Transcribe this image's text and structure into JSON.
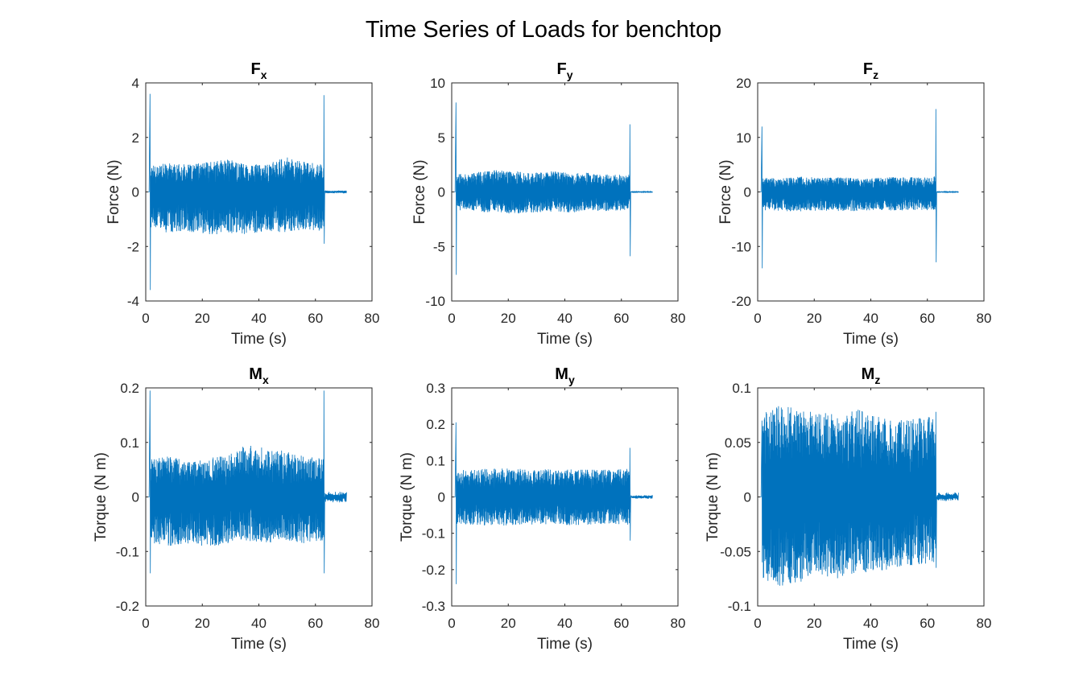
{
  "figure_title": "Time Series of Loads for benchtop",
  "line_color": "#0072BD",
  "chart_data": [
    {
      "type": "line",
      "title_main": "F",
      "title_sub": "x",
      "xlabel": "Time (s)",
      "ylabel": "Force (N)",
      "xlim": [
        0,
        80
      ],
      "ylim": [
        -4,
        4
      ],
      "xticks": [
        0,
        20,
        40,
        60,
        80
      ],
      "yticks": [
        -4,
        -2,
        0,
        2,
        4
      ],
      "xtick_labels": [
        "0",
        "20",
        "40",
        "60",
        "80"
      ],
      "ytick_labels": [
        "-4",
        "-2",
        "0",
        "2",
        "4"
      ],
      "series": [
        {
          "values": {
            "signal_start": 1.5,
            "signal_end": 63,
            "tail_end": 71,
            "spike_start": [
              3.6,
              -3.6
            ],
            "spike_end": [
              3.55,
              -1.9
            ],
            "env_pos": [
              1.0,
              1.05,
              1.0,
              1.1,
              1.2,
              1.05,
              1.0,
              1.3,
              1.1,
              1.0
            ],
            "env_neg": [
              -1.4,
              -1.5,
              -1.45,
              -1.6,
              -1.5,
              -1.55,
              -1.45,
              -1.5,
              -1.4,
              -1.45
            ],
            "tail_amp": 0.05
          }
        }
      ]
    },
    {
      "type": "line",
      "title_main": "F",
      "title_sub": "y",
      "xlabel": "Time (s)",
      "ylabel": "Force (N)",
      "xlim": [
        0,
        80
      ],
      "ylim": [
        -10,
        10
      ],
      "xticks": [
        0,
        20,
        40,
        60,
        80
      ],
      "yticks": [
        -10,
        -5,
        0,
        5,
        10
      ],
      "xtick_labels": [
        "0",
        "20",
        "40",
        "60",
        "80"
      ],
      "ytick_labels": [
        "-10",
        "-5",
        "0",
        "5",
        "10"
      ],
      "series": [
        {
          "values": {
            "signal_start": 1.5,
            "signal_end": 63,
            "tail_end": 71,
            "spike_start": [
              8.2,
              -7.6
            ],
            "spike_end": [
              6.2,
              -5.9
            ],
            "env_pos": [
              1.6,
              1.8,
              2.0,
              1.9,
              1.8,
              1.9,
              1.7,
              1.8,
              1.6,
              1.6
            ],
            "env_neg": [
              -1.7,
              -1.8,
              -1.9,
              -2.0,
              -1.9,
              -1.8,
              -1.9,
              -1.7,
              -1.8,
              -1.6
            ],
            "tail_amp": 0.05
          }
        }
      ]
    },
    {
      "type": "line",
      "title_main": "F",
      "title_sub": "z",
      "xlabel": "Time (s)",
      "ylabel": "Force (N)",
      "xlim": [
        0,
        80
      ],
      "ylim": [
        -20,
        20
      ],
      "xticks": [
        0,
        20,
        40,
        60,
        80
      ],
      "yticks": [
        -20,
        -10,
        0,
        10,
        20
      ],
      "xtick_labels": [
        "0",
        "20",
        "40",
        "60",
        "80"
      ],
      "ytick_labels": [
        "-20",
        "-10",
        "0",
        "10",
        "20"
      ],
      "series": [
        {
          "values": {
            "signal_start": 1.5,
            "signal_end": 63,
            "tail_end": 71,
            "spike_start": [
              12,
              -14
            ],
            "spike_end": [
              15.2,
              -12.9
            ],
            "env_pos": [
              2.6,
              2.5,
              2.8,
              2.6,
              2.7,
              2.5,
              2.6,
              2.8,
              2.7,
              2.9
            ],
            "env_neg": [
              -3.4,
              -3.5,
              -3.6,
              -3.4,
              -3.5,
              -3.6,
              -3.3,
              -3.5,
              -3.4,
              -3.3
            ],
            "tail_amp": 0.1
          }
        }
      ]
    },
    {
      "type": "line",
      "title_main": "M",
      "title_sub": "x",
      "xlabel": "Time (s)",
      "ylabel": "Torque (N m)",
      "xlim": [
        0,
        80
      ],
      "ylim": [
        -0.2,
        0.2
      ],
      "xticks": [
        0,
        20,
        40,
        60,
        80
      ],
      "yticks": [
        -0.2,
        -0.1,
        0,
        0.1,
        0.2
      ],
      "xtick_labels": [
        "0",
        "20",
        "40",
        "60",
        "80"
      ],
      "ytick_labels": [
        "-0.2",
        "-0.1",
        "0",
        "0.1",
        "0.2"
      ],
      "series": [
        {
          "values": {
            "signal_start": 1.5,
            "signal_end": 63,
            "tail_end": 71,
            "spike_start": [
              0.195,
              -0.14
            ],
            "spike_end": [
              0.195,
              -0.14
            ],
            "env_pos": [
              0.07,
              0.075,
              0.065,
              0.07,
              0.08,
              0.095,
              0.09,
              0.085,
              0.075,
              0.07
            ],
            "env_neg": [
              -0.085,
              -0.09,
              -0.085,
              -0.095,
              -0.085,
              -0.08,
              -0.085,
              -0.08,
              -0.085,
              -0.08
            ],
            "tail_amp": 0.01
          }
        }
      ]
    },
    {
      "type": "line",
      "title_main": "M",
      "title_sub": "y",
      "xlabel": "Time (s)",
      "ylabel": "Torque (N m)",
      "xlim": [
        0,
        80
      ],
      "ylim": [
        -0.3,
        0.3
      ],
      "xticks": [
        0,
        20,
        40,
        60,
        80
      ],
      "yticks": [
        -0.3,
        -0.2,
        -0.1,
        0,
        0.1,
        0.2,
        0.3
      ],
      "xtick_labels": [
        "0",
        "20",
        "40",
        "60",
        "80"
      ],
      "ytick_labels": [
        "-0.3",
        "-0.2",
        "-0.1",
        "0",
        "0.1",
        "0.2",
        "0.3"
      ],
      "series": [
        {
          "values": {
            "signal_start": 1.5,
            "signal_end": 63,
            "tail_end": 71,
            "spike_start": [
              0.205,
              -0.24
            ],
            "spike_end": [
              0.135,
              -0.12
            ],
            "env_pos": [
              0.075,
              0.075,
              0.08,
              0.078,
              0.075,
              0.078,
              0.076,
              0.075,
              0.075,
              0.078
            ],
            "env_neg": [
              -0.075,
              -0.078,
              -0.08,
              -0.078,
              -0.076,
              -0.075,
              -0.078,
              -0.076,
              -0.075,
              -0.078
            ],
            "tail_amp": 0.005
          }
        }
      ]
    },
    {
      "type": "line",
      "title_main": "M",
      "title_sub": "z",
      "xlabel": "Time (s)",
      "ylabel": "Torque (N m)",
      "xlim": [
        0,
        80
      ],
      "ylim": [
        -0.1,
        0.1
      ],
      "xticks": [
        0,
        20,
        40,
        60,
        80
      ],
      "yticks": [
        -0.1,
        -0.05,
        0,
        0.05,
        0.1
      ],
      "xtick_labels": [
        "0",
        "20",
        "40",
        "60",
        "80"
      ],
      "ytick_labels": [
        "-0.1",
        "-0.05",
        "0",
        "0.05",
        "0.1"
      ],
      "series": [
        {
          "values": {
            "signal_start": 1.5,
            "signal_end": 63,
            "tail_end": 71,
            "spike_start": [
              0.07,
              -0.06
            ],
            "spike_end": [
              0.078,
              -0.065
            ],
            "env_pos": [
              0.08,
              0.085,
              0.08,
              0.078,
              0.082,
              0.08,
              0.075,
              0.07,
              0.072,
              0.075
            ],
            "env_neg": [
              -0.075,
              -0.082,
              -0.078,
              -0.072,
              -0.075,
              -0.07,
              -0.068,
              -0.065,
              -0.062,
              -0.06
            ],
            "tail_amp": 0.004
          }
        }
      ]
    }
  ]
}
